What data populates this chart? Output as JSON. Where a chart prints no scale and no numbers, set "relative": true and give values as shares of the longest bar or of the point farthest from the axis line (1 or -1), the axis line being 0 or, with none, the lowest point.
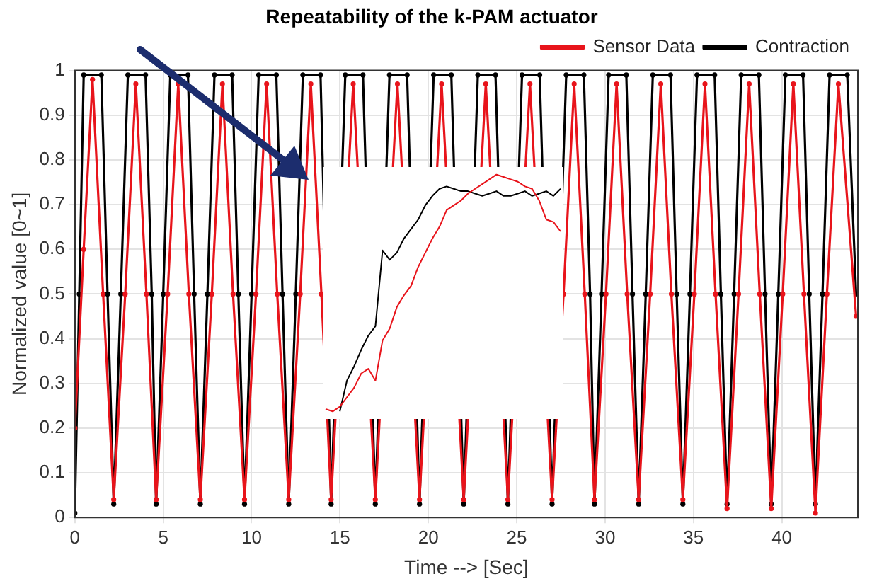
{
  "chart_data": [
    {
      "type": "line",
      "title": "Repeatability of the k-PAM actuator",
      "xlabel": "Time --> [Sec]",
      "ylabel": "Normalized value [0~1]",
      "xlim": [
        0,
        44.3
      ],
      "ylim": [
        0,
        1
      ],
      "xticks": [
        0,
        5,
        10,
        15,
        20,
        25,
        30,
        35,
        40
      ],
      "yticks": [
        0,
        0.1,
        0.2,
        0.3,
        0.4,
        0.5,
        0.6,
        0.7,
        0.8,
        0.9,
        1
      ],
      "grid": true,
      "legend": "top right",
      "marker": "circle",
      "line_style": "solid",
      "series": [
        {
          "name": "Sensor Data",
          "color": "#e8141b",
          "x": [
            0,
            0.5,
            1.0,
            1.6,
            2.2,
            2.85,
            3.45,
            4.05,
            4.6,
            5.25,
            5.85,
            6.45,
            7.1,
            7.75,
            8.35,
            8.95,
            9.6,
            10.25,
            10.85,
            11.45,
            12.1,
            12.75,
            13.35,
            13.95,
            14.5,
            15.15,
            15.75,
            16.35,
            17.0,
            17.65,
            18.25,
            18.85,
            19.5,
            20.15,
            20.75,
            21.35,
            22.0,
            22.65,
            23.25,
            23.85,
            24.5,
            25.15,
            25.75,
            26.35,
            27.0,
            27.65,
            28.25,
            28.85,
            29.4,
            30.05,
            30.65,
            31.25,
            31.9,
            32.55,
            33.15,
            33.75,
            34.4,
            35.05,
            35.65,
            36.25,
            36.9,
            37.55,
            38.15,
            38.75,
            39.4,
            40.05,
            40.65,
            41.25,
            41.9,
            42.55,
            43.2,
            44.2
          ],
          "values": [
            0.2,
            0.6,
            0.98,
            0.5,
            0.04,
            0.5,
            0.97,
            0.5,
            0.04,
            0.5,
            0.97,
            0.5,
            0.04,
            0.5,
            0.97,
            0.5,
            0.04,
            0.5,
            0.97,
            0.5,
            0.04,
            0.5,
            0.97,
            0.5,
            0.04,
            null,
            0.97,
            null,
            0.04,
            null,
            0.97,
            null,
            0.04,
            null,
            0.97,
            null,
            0.04,
            null,
            0.97,
            null,
            0.04,
            null,
            0.97,
            null,
            0.04,
            0.5,
            0.97,
            0.5,
            0.04,
            0.5,
            0.97,
            0.5,
            0.04,
            0.5,
            0.97,
            0.5,
            0.04,
            0.5,
            0.97,
            0.5,
            0.02,
            0.5,
            0.97,
            0.5,
            0.02,
            0.5,
            0.97,
            0.5,
            0.01,
            0.5,
            0.97,
            0.45
          ]
        },
        {
          "name": "Contraction",
          "color": "#000000",
          "x": [
            0,
            0.25,
            0.5,
            1.5,
            1.85,
            2.2,
            2.6,
            3.0,
            4.0,
            4.35,
            4.6,
            5.0,
            5.4,
            6.4,
            6.75,
            7.1,
            7.5,
            7.9,
            8.9,
            9.25,
            9.6,
            10.0,
            10.4,
            11.4,
            11.75,
            12.1,
            12.5,
            12.9,
            13.9,
            14.25,
            14.5,
            14.9,
            15.3,
            16.3,
            16.65,
            17.0,
            17.4,
            17.8,
            18.8,
            19.15,
            19.5,
            19.9,
            20.3,
            21.3,
            21.65,
            22.0,
            22.4,
            22.8,
            23.8,
            24.15,
            24.5,
            24.9,
            25.3,
            26.3,
            26.65,
            27.0,
            27.4,
            27.8,
            28.8,
            29.15,
            29.4,
            29.8,
            30.2,
            31.2,
            31.55,
            31.9,
            32.3,
            32.7,
            33.7,
            34.05,
            34.4,
            34.8,
            35.2,
            36.2,
            36.55,
            36.9,
            37.3,
            37.7,
            38.7,
            39.05,
            39.4,
            39.8,
            40.2,
            41.2,
            41.55,
            41.9,
            42.3,
            42.7,
            43.7,
            44.2
          ],
          "values": [
            0.01,
            0.5,
            0.99,
            0.99,
            0.5,
            0.03,
            0.5,
            0.99,
            0.99,
            0.5,
            0.03,
            0.5,
            0.99,
            0.99,
            0.5,
            0.03,
            0.5,
            0.99,
            0.99,
            0.5,
            0.03,
            0.5,
            0.99,
            0.99,
            0.5,
            0.03,
            0.5,
            0.99,
            0.99,
            null,
            0.03,
            null,
            0.99,
            0.99,
            null,
            0.03,
            null,
            0.99,
            0.99,
            null,
            0.03,
            null,
            0.99,
            0.99,
            null,
            0.03,
            null,
            0.99,
            0.99,
            null,
            0.03,
            null,
            0.99,
            0.99,
            null,
            0.03,
            null,
            0.99,
            0.99,
            0.5,
            0.03,
            0.5,
            0.99,
            0.99,
            0.5,
            0.03,
            0.5,
            0.99,
            0.99,
            0.5,
            0.03,
            0.5,
            0.99,
            0.99,
            0.5,
            0.03,
            0.5,
            0.99,
            0.99,
            0.5,
            0.03,
            0.5,
            0.99,
            0.99,
            0.5,
            0.03,
            0.5,
            0.99,
            0.99,
            0.5
          ]
        }
      ]
    },
    {
      "type": "line",
      "relative": true,
      "marker": "none",
      "line_style": "solid",
      "categories": [
        null,
        null,
        null,
        null,
        null,
        null,
        null,
        null,
        null,
        null,
        null,
        null,
        null,
        null,
        null,
        null,
        null,
        null,
        null,
        null,
        null,
        null,
        null,
        null,
        null,
        null,
        null,
        null,
        null,
        null,
        null,
        null,
        null,
        null
      ],
      "series": [
        {
          "color": "#e8141b",
          "values": [
            0.01,
            0,
            0.02,
            0.06,
            0.1,
            0.16,
            0.18,
            0.13,
            0.3,
            0.35,
            0.44,
            0.49,
            0.53,
            0.61,
            0.67,
            0.73,
            0.78,
            0.85,
            0.87,
            0.89,
            0.92,
            0.94,
            0.96,
            0.98,
            1,
            0.99,
            0.98,
            0.97,
            0.95,
            0.94,
            0.89,
            0.81,
            0.8,
            0.76
          ]
        },
        {
          "color": "#000000",
          "values": [
            null,
            null,
            0,
            0.13,
            0.19,
            0.26,
            0.32,
            0.36,
            0.68,
            0.64,
            0.67,
            0.73,
            0.77,
            0.81,
            0.87,
            0.91,
            0.94,
            0.95,
            0.94,
            0.93,
            0.93,
            0.92,
            0.91,
            0.92,
            0.93,
            0.91,
            0.91,
            0.92,
            0.93,
            0.91,
            0.92,
            0.93,
            0.91,
            0.94
          ]
        }
      ]
    }
  ]
}
